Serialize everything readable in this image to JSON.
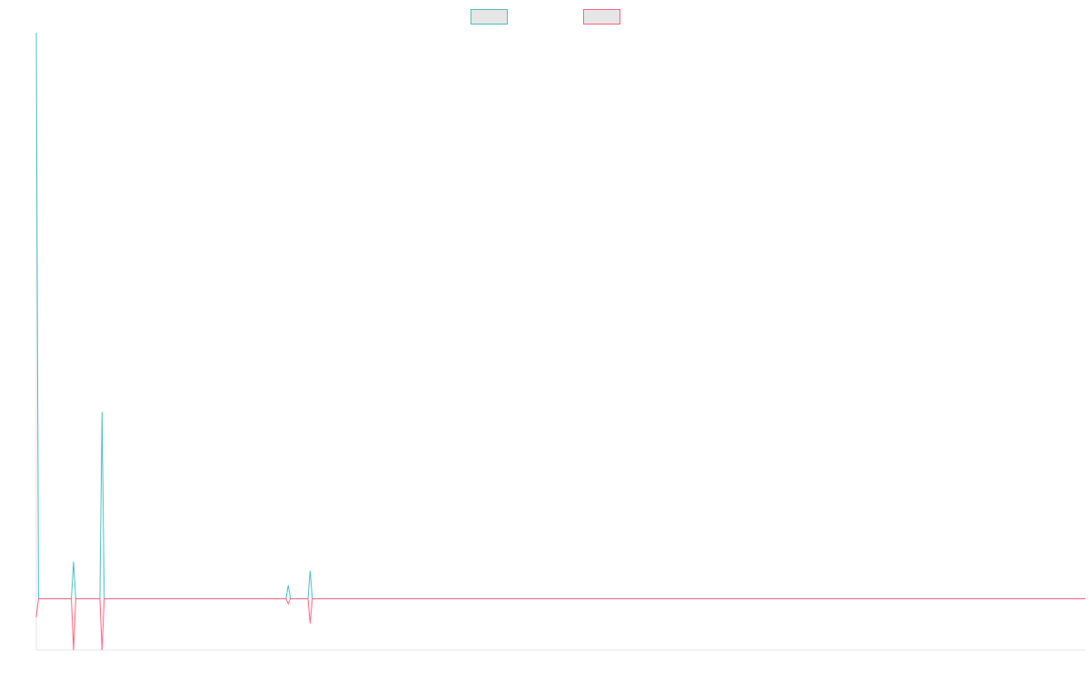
{
  "chart_data": {
    "type": "line",
    "title": "",
    "xlabel": "",
    "ylabel": "",
    "legend_position": "top-center",
    "grid": false,
    "x": [
      0,
      1,
      2,
      3,
      4,
      5,
      6,
      7,
      8,
      9,
      10,
      11,
      12,
      13,
      14,
      15,
      16,
      17,
      18,
      19,
      20,
      21,
      22,
      23,
      24,
      25,
      26,
      27,
      28,
      29,
      30,
      31,
      32,
      33,
      34,
      35,
      36,
      37,
      38,
      39,
      40,
      41,
      42,
      43,
      44,
      45,
      46,
      47,
      48,
      49,
      50,
      51,
      52,
      53,
      54,
      55,
      56,
      57,
      58,
      59,
      60,
      61,
      62,
      63,
      64,
      65,
      66,
      67,
      68,
      69,
      70,
      71,
      72,
      73,
      74,
      75,
      76,
      77,
      78,
      79,
      80,
      81,
      82,
      83,
      84,
      85,
      86,
      87,
      88,
      89,
      90,
      91,
      92,
      93,
      94,
      95,
      96,
      97,
      98,
      99,
      100,
      101,
      102,
      103,
      104,
      105,
      106,
      107,
      108,
      109,
      110,
      111,
      112,
      113,
      114,
      115,
      116,
      117,
      118,
      119,
      120,
      121,
      122,
      123,
      124,
      125,
      126,
      127,
      128,
      129,
      130,
      131,
      132,
      133,
      134,
      135,
      136,
      137,
      138,
      139,
      140,
      141,
      142,
      143,
      144,
      145,
      146,
      147,
      148,
      149,
      150,
      151,
      152,
      153,
      154,
      155,
      156,
      157,
      158,
      159,
      160,
      161,
      162,
      163,
      164,
      165,
      166,
      167,
      168,
      169,
      170,
      171,
      172,
      173,
      174,
      175,
      176,
      177,
      178,
      179,
      180,
      181,
      182,
      183,
      184,
      185,
      186,
      187,
      188,
      189,
      190,
      191,
      192,
      193,
      194,
      195,
      196,
      197,
      198,
      199,
      200,
      201,
      202,
      203,
      204,
      205,
      206,
      207,
      208,
      209,
      210,
      211,
      212,
      213,
      214,
      215,
      216,
      217,
      218,
      219,
      220,
      221,
      222,
      223,
      224,
      225,
      226,
      227,
      228,
      229,
      230,
      231,
      232,
      233,
      234,
      235,
      236,
      237,
      238,
      239,
      240,
      241,
      242,
      243,
      244,
      245,
      246,
      247,
      248,
      249,
      250,
      251,
      252,
      253,
      254,
      255,
      256,
      257,
      258,
      259,
      260,
      261,
      262,
      263,
      264,
      265,
      266,
      267,
      268,
      269,
      270,
      271,
      272,
      273,
      274,
      275,
      276,
      277,
      278,
      279,
      280,
      281,
      282,
      283,
      284,
      285,
      286,
      287,
      288,
      289,
      290,
      291,
      292,
      293,
      294,
      295,
      296,
      297,
      298,
      299,
      300,
      301,
      302,
      303,
      304,
      305,
      306,
      307,
      308,
      309,
      310,
      311,
      312,
      313,
      314,
      315,
      316,
      317,
      318,
      319,
      320,
      321,
      322,
      323,
      324,
      325,
      326,
      327,
      328,
      329,
      330,
      331,
      332,
      333,
      334,
      335,
      336,
      337,
      338,
      339,
      340,
      341,
      342,
      343,
      344,
      345,
      346,
      347,
      348,
      349,
      350,
      351,
      352,
      353,
      354,
      355,
      356,
      357,
      358,
      359,
      360,
      361,
      362,
      363,
      364,
      365,
      366,
      367,
      368,
      369,
      370,
      371,
      372,
      373,
      374,
      375,
      376,
      377,
      378,
      379,
      380,
      381,
      382,
      383,
      384,
      385,
      386,
      387,
      388,
      389,
      390,
      391,
      392,
      393,
      394,
      395,
      396,
      397,
      398,
      399,
      400,
      401,
      402,
      403,
      404,
      405,
      406,
      407,
      408,
      409,
      410,
      411,
      412,
      413,
      414,
      415,
      416,
      417,
      418,
      419,
      420,
      421,
      422,
      423,
      424,
      425,
      426,
      427,
      428,
      429,
      430,
      431,
      432,
      433,
      434,
      435,
      436,
      437,
      438,
      439,
      440,
      441,
      442,
      443,
      444,
      445,
      446,
      447,
      448,
      449,
      450,
      451,
      452,
      453,
      454,
      455,
      456,
      457,
      458,
      459,
      460,
      461,
      462,
      463,
      464,
      465,
      466,
      467,
      468,
      469,
      470,
      471,
      472,
      473,
      474,
      475,
      476,
      477,
      478,
      479
    ],
    "xlim": [
      0,
      479
    ],
    "ylim": [
      -1,
      11
    ],
    "series": [
      {
        "name": "",
        "color": "#4bc0c0",
        "fill": "#e6e6e6",
        "points": [
          [
            0,
            11
          ],
          [
            1,
            0
          ],
          [
            16,
            0
          ],
          [
            17,
            0.72
          ],
          [
            18,
            0
          ],
          [
            29,
            0
          ],
          [
            30,
            3.63
          ],
          [
            31,
            0
          ],
          [
            114,
            0
          ],
          [
            115,
            0.26
          ],
          [
            116,
            0
          ],
          [
            124,
            0
          ],
          [
            125,
            0.54
          ],
          [
            126,
            0
          ],
          [
            479,
            0
          ]
        ]
      },
      {
        "name": "",
        "color": "#ff6384",
        "fill": "#e6e6e6",
        "points": [
          [
            0,
            -0.36
          ],
          [
            1,
            0
          ],
          [
            16,
            0
          ],
          [
            17,
            -1
          ],
          [
            18,
            0
          ],
          [
            29,
            0
          ],
          [
            30,
            -1
          ],
          [
            31,
            0
          ],
          [
            114,
            0
          ],
          [
            115,
            -0.1
          ],
          [
            116,
            0
          ],
          [
            124,
            0
          ],
          [
            125,
            -0.48
          ],
          [
            126,
            0
          ],
          [
            479,
            0
          ]
        ]
      }
    ]
  }
}
